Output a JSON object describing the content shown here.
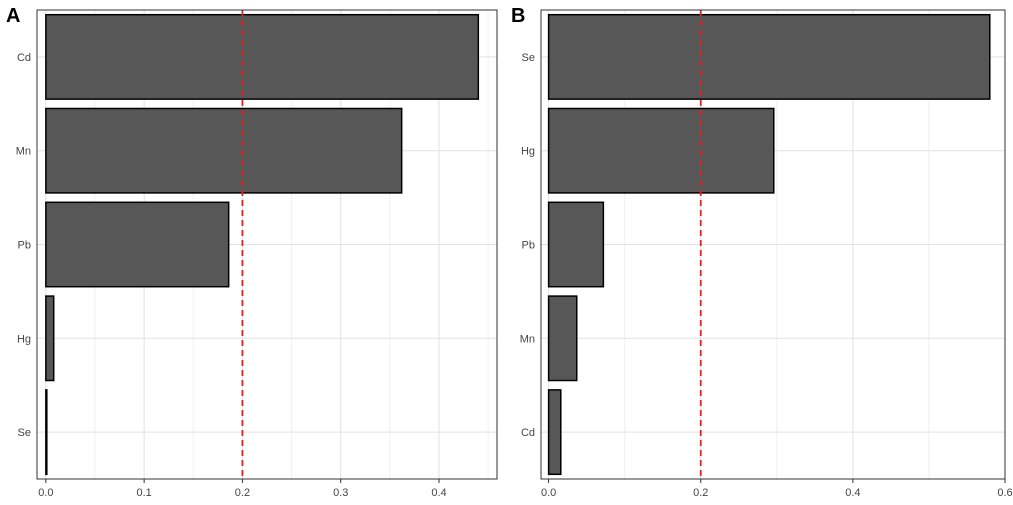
{
  "figure": {
    "panels": [
      "A",
      "B"
    ]
  },
  "chart_data": [
    {
      "panel": "A",
      "type": "bar",
      "orientation": "horizontal",
      "categories": [
        "Cd",
        "Mn",
        "Pb",
        "Hg",
        "Se"
      ],
      "values": [
        0.44,
        0.362,
        0.186,
        0.008,
        0.001
      ],
      "x_ticks": [
        0.0,
        0.1,
        0.2,
        0.3,
        0.4
      ],
      "x_tick_labels": [
        "0.0",
        "0.1",
        "0.2",
        "0.3",
        "0.4"
      ],
      "xlim": [
        -0.009,
        0.459
      ],
      "threshold": 0.2,
      "threshold_color": "#d62728",
      "bar_color": "#575757",
      "grid": true,
      "title": "",
      "xlabel": "",
      "ylabel": ""
    },
    {
      "panel": "B",
      "type": "bar",
      "orientation": "horizontal",
      "categories": [
        "Se",
        "Hg",
        "Pb",
        "Mn",
        "Cd"
      ],
      "values": [
        0.58,
        0.296,
        0.072,
        0.037,
        0.016
      ],
      "x_ticks": [
        0.0,
        0.2,
        0.4,
        0.6
      ],
      "x_tick_labels": [
        "0.0",
        "0.2",
        "0.4",
        "0.6"
      ],
      "xlim": [
        -0.01,
        0.6
      ],
      "threshold": 0.2,
      "threshold_color": "#d62728",
      "bar_color": "#575757",
      "grid": true,
      "title": "",
      "xlabel": "",
      "ylabel": ""
    }
  ]
}
